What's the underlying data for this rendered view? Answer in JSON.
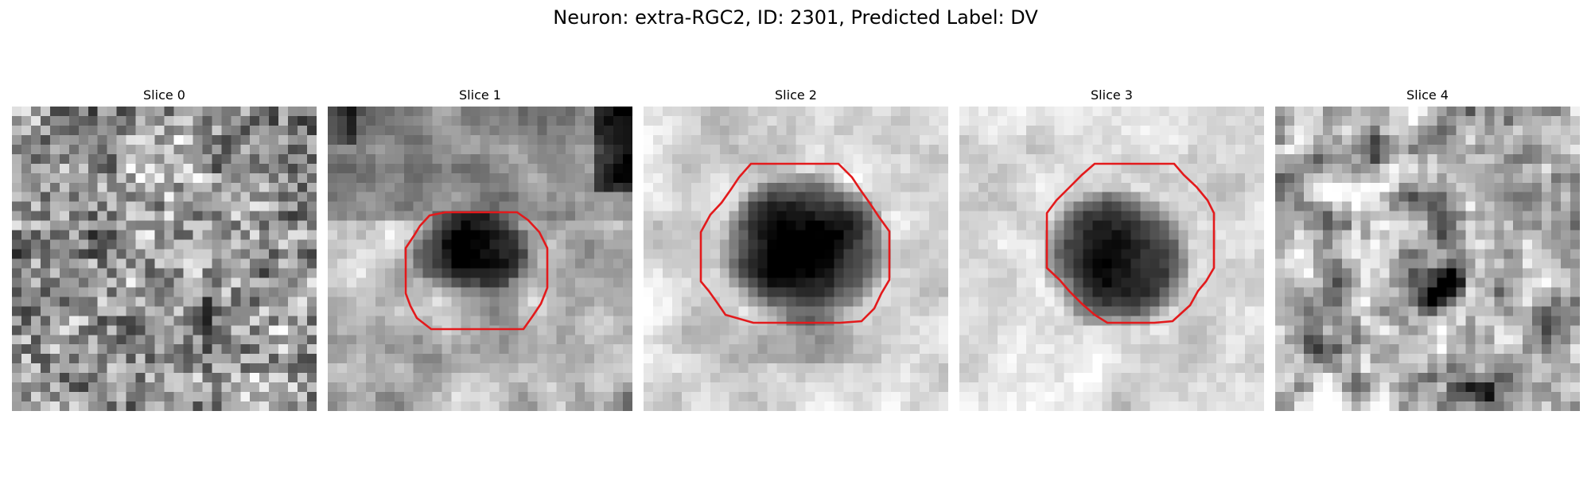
{
  "title": "Neuron: extra-RGC2, ID: 2301, Predicted Label: DV",
  "colors": {
    "contour": "#e31a1c",
    "background": "#ffffff"
  },
  "slices": [
    {
      "label": "Slice 0",
      "pattern": "noise",
      "has_contour": false
    },
    {
      "label": "Slice 1",
      "pattern": "blob-upper",
      "has_contour": true
    },
    {
      "label": "Slice 2",
      "pattern": "blob-center",
      "has_contour": true
    },
    {
      "label": "Slice 3",
      "pattern": "blob-ring",
      "has_contour": true
    },
    {
      "label": "Slice 4",
      "pattern": "texture",
      "has_contour": false
    }
  ]
}
